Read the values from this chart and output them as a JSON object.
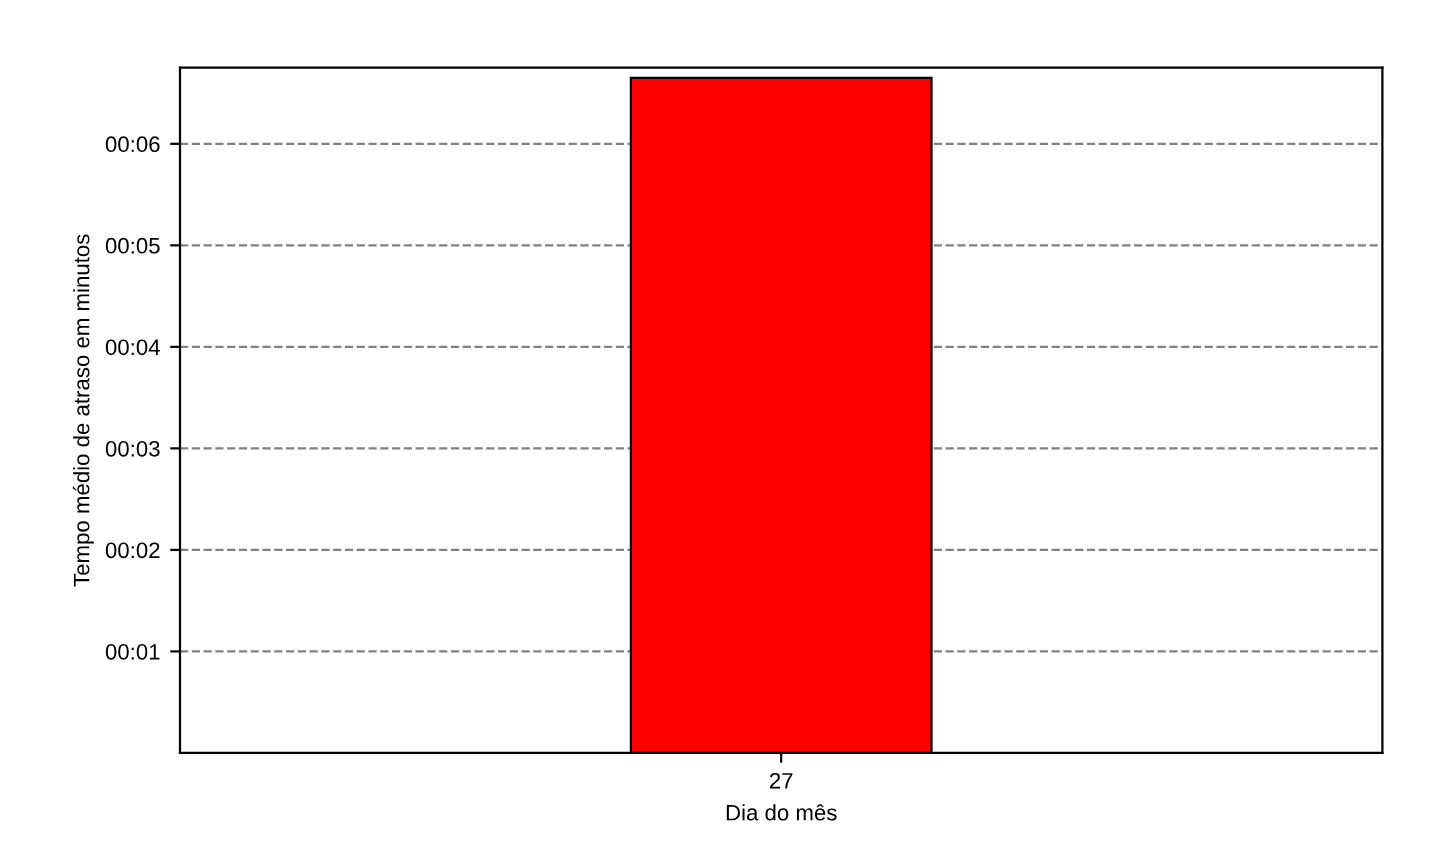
{
  "chart_data": {
    "type": "bar",
    "xlabel": "Dia do mês",
    "ylabel": "Tempo médio de atraso em minutos",
    "categories": [
      "27"
    ],
    "values": [
      6.65
    ],
    "color": "#ff0000",
    "ylim": [
      0,
      6.75
    ],
    "yticks": [
      {
        "value": 1,
        "label": "00:01"
      },
      {
        "value": 2,
        "label": "00:02"
      },
      {
        "value": 3,
        "label": "00:03"
      },
      {
        "value": 4,
        "label": "00:04"
      },
      {
        "value": 5,
        "label": "00:05"
      },
      {
        "value": 6,
        "label": "00:06"
      }
    ],
    "grid": "y"
  }
}
